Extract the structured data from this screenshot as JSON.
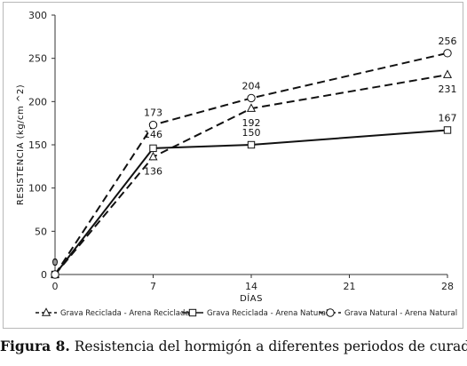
{
  "chart_data": {
    "type": "line",
    "title": "",
    "xlabel": "DÍAS",
    "ylabel": "RESISTENCIA (kg/cm ^2)",
    "x": [
      0,
      7,
      14,
      28
    ],
    "x_ticks": [
      0,
      7,
      14,
      21,
      28
    ],
    "y_ticks": [
      0,
      50,
      100,
      150,
      200,
      250,
      300
    ],
    "xlim": [
      0,
      28
    ],
    "ylim": [
      0,
      300
    ],
    "grid": false,
    "legend_position": "bottom",
    "series": [
      {
        "name": "Grava Reciclada - Arena Reciclada",
        "values": [
          0,
          136,
          192,
          231
        ],
        "labels": [
          "0",
          "136",
          "192",
          "231"
        ],
        "marker": "triangle",
        "dash": "dashed",
        "color": "#111111"
      },
      {
        "name": "Grava Reciclada - Arena Natural",
        "values": [
          0,
          146,
          150,
          167
        ],
        "labels": [
          "0",
          "146",
          "150",
          "167"
        ],
        "marker": "square",
        "dash": "solid",
        "color": "#111111"
      },
      {
        "name": "Grava Natural - Arena Natural",
        "values": [
          0,
          173,
          204,
          256
        ],
        "labels": [
          "0",
          "173",
          "204",
          "256"
        ],
        "marker": "circle",
        "dash": "dashed",
        "color": "#111111"
      }
    ]
  },
  "caption": {
    "label": "Figura 8.",
    "text": "Resistencia del hormigón a diferentes periodos de curado"
  }
}
